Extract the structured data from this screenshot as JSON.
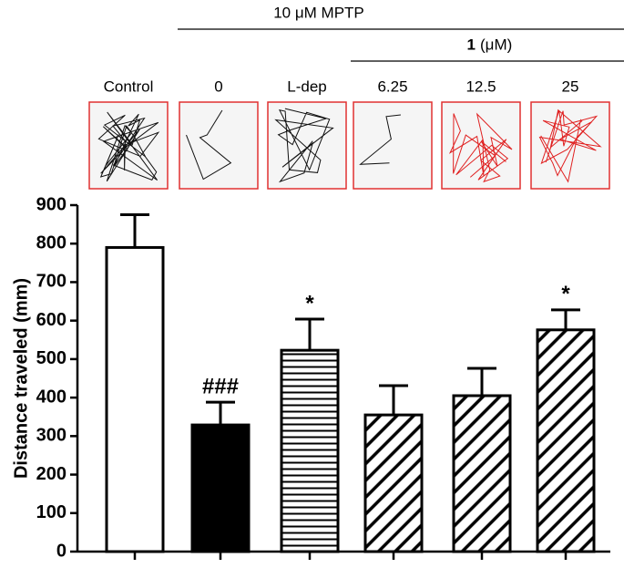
{
  "chart_data": {
    "type": "bar",
    "group_label": "10 μM MPTP",
    "subgroup_label_bold": "1",
    "subgroup_label": "(μM)",
    "y_label": "Distance traveled (mm)",
    "categories": [
      "Control",
      "0",
      "L-dep",
      "6.25",
      "12.5",
      "25"
    ],
    "values": [
      790,
      329,
      523,
      355,
      405,
      576
    ],
    "errors": [
      85,
      59,
      81,
      76,
      71,
      52
    ],
    "annotations": [
      null,
      "###",
      "*",
      null,
      null,
      "*"
    ],
    "fills": [
      "white",
      "black",
      "horizontal",
      "diagonal",
      "diagonal",
      "diagonal"
    ],
    "ylim": [
      0,
      900
    ],
    "yticks": [
      0,
      100,
      200,
      300,
      400,
      500,
      600,
      700,
      800,
      900
    ]
  }
}
